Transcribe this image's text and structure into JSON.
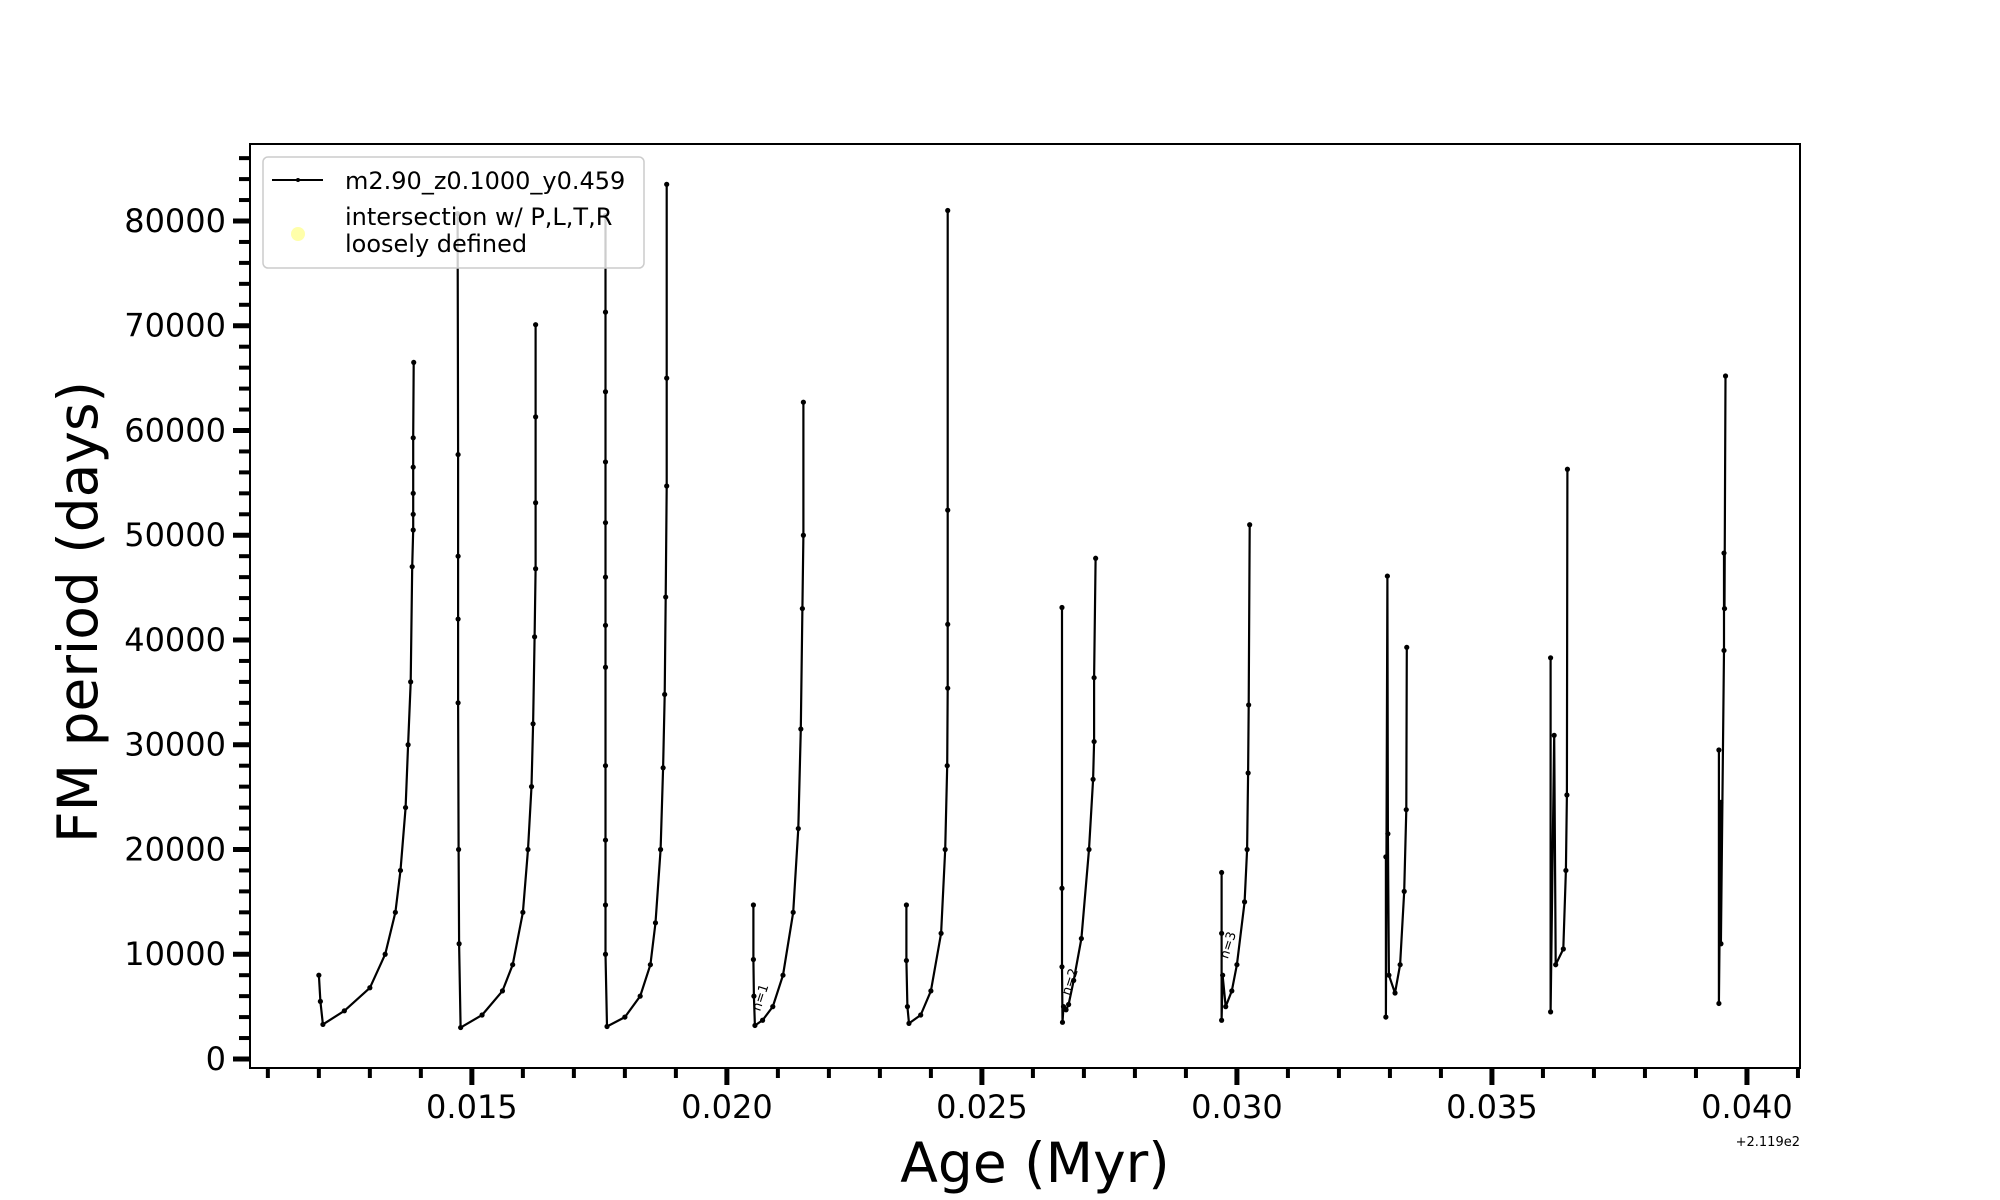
{
  "chart_data": {
    "type": "line",
    "title": "",
    "xlabel": "Age (Myr)",
    "ylabel": "FM period (days)",
    "x_offset_text": "+2.119e2",
    "xlim": [
      0.01065,
      0.04104
    ],
    "ylim": [
      -860,
      87350
    ],
    "x_ticks": [
      "0.015",
      "0.020",
      "0.025",
      "0.030",
      "0.035",
      "0.040"
    ],
    "x_tick_values": [
      0.015,
      0.02,
      0.025,
      0.03,
      0.035,
      0.04
    ],
    "y_ticks": [
      "0",
      "10000",
      "20000",
      "30000",
      "40000",
      "50000",
      "60000",
      "70000",
      "80000"
    ],
    "y_tick_values": [
      0,
      10000,
      20000,
      30000,
      40000,
      50000,
      60000,
      70000,
      80000
    ],
    "grid": false,
    "legend_placement": "upper-left",
    "legend": [
      {
        "label": "m2.90_z0.1000_y0.459",
        "marker": "line-with-dots",
        "color": "#000000"
      },
      {
        "label": "intersection w/ P,L,T,R\nloosely defined",
        "label_lines": [
          "intersection w/ P,L,T,R",
          "loosely defined"
        ],
        "marker": "circle",
        "color": "#ffffaa"
      }
    ],
    "annotations": [
      {
        "text": "n=1",
        "x": 0.02065,
        "y": 4500
      },
      {
        "text": "n=2",
        "x": 0.02672,
        "y": 6000
      },
      {
        "text": "n=3",
        "x": 0.02982,
        "y": 9500
      }
    ],
    "series": [
      {
        "name": "m2.90_z0.1000_y0.459",
        "color": "#000000",
        "segments": [
          [
            [
              0.012,
              8000
            ],
            [
              0.01203,
              5500
            ],
            [
              0.01208,
              3300
            ],
            [
              0.0125,
              4600
            ],
            [
              0.013,
              6800
            ],
            [
              0.0133,
              10000
            ],
            [
              0.0135,
              14000
            ],
            [
              0.0136,
              18000
            ],
            [
              0.0137,
              24000
            ],
            [
              0.01375,
              30000
            ],
            [
              0.0138,
              36000
            ],
            [
              0.01383,
              47000
            ],
            [
              0.01385,
              50500
            ],
            [
              0.01385,
              52000
            ],
            [
              0.01385,
              54000
            ],
            [
              0.01385,
              56500
            ],
            [
              0.01385,
              59300
            ],
            [
              0.01386,
              66500
            ]
          ],
          [
            [
              0.01472,
              80700
            ],
            [
              0.01473,
              57700
            ],
            [
              0.01473,
              48000
            ],
            [
              0.01473,
              42000
            ],
            [
              0.01473,
              34000
            ],
            [
              0.01474,
              20000
            ],
            [
              0.01475,
              11000
            ],
            [
              0.01478,
              3000
            ],
            [
              0.0152,
              4200
            ],
            [
              0.0156,
              6500
            ],
            [
              0.0158,
              9000
            ],
            [
              0.016,
              14000
            ],
            [
              0.0161,
              20000
            ],
            [
              0.01617,
              26000
            ],
            [
              0.0162,
              32000
            ],
            [
              0.01623,
              40300
            ],
            [
              0.01625,
              46800
            ],
            [
              0.01625,
              53100
            ],
            [
              0.01625,
              61300
            ],
            [
              0.01625,
              70100
            ]
          ],
          [
            [
              0.01762,
              80500
            ],
            [
              0.01762,
              71300
            ],
            [
              0.01762,
              63700
            ],
            [
              0.01762,
              57000
            ],
            [
              0.01762,
              51200
            ],
            [
              0.01762,
              46000
            ],
            [
              0.01762,
              41400
            ],
            [
              0.01762,
              37400
            ],
            [
              0.01762,
              28000
            ],
            [
              0.01762,
              20900
            ],
            [
              0.01762,
              14700
            ],
            [
              0.01762,
              10000
            ],
            [
              0.01765,
              3100
            ],
            [
              0.018,
              4000
            ],
            [
              0.0183,
              6000
            ],
            [
              0.0185,
              9000
            ],
            [
              0.0186,
              13000
            ],
            [
              0.0187,
              20000
            ],
            [
              0.01875,
              27800
            ],
            [
              0.01878,
              34800
            ],
            [
              0.0188,
              44100
            ],
            [
              0.01882,
              54700
            ],
            [
              0.01882,
              65000
            ],
            [
              0.01882,
              83500
            ]
          ],
          [
            [
              0.02052,
              14700
            ],
            [
              0.02052,
              9500
            ],
            [
              0.02053,
              6000
            ],
            [
              0.02055,
              3200
            ],
            [
              0.0207,
              3700
            ],
            [
              0.0209,
              5000
            ],
            [
              0.0211,
              8000
            ],
            [
              0.0213,
              14000
            ],
            [
              0.0214,
              22000
            ],
            [
              0.02145,
              31500
            ],
            [
              0.02148,
              43000
            ],
            [
              0.0215,
              50000
            ],
            [
              0.0215,
              62700
            ]
          ],
          [
            [
              0.02352,
              14700
            ],
            [
              0.02352,
              9400
            ],
            [
              0.02354,
              5000
            ],
            [
              0.02357,
              3400
            ],
            [
              0.0238,
              4200
            ],
            [
              0.024,
              6500
            ],
            [
              0.0242,
              12000
            ],
            [
              0.02428,
              20000
            ],
            [
              0.02432,
              28000
            ],
            [
              0.02433,
              35400
            ],
            [
              0.02433,
              41500
            ],
            [
              0.02433,
              52400
            ],
            [
              0.02433,
              81000
            ]
          ],
          [
            [
              0.02657,
              43100
            ],
            [
              0.02657,
              16300
            ],
            [
              0.02657,
              8800
            ],
            [
              0.02658,
              3500
            ],
            [
              0.0266,
              5000
            ],
            [
              0.02665,
              4700
            ],
            [
              0.0267,
              5200
            ],
            [
              0.0268,
              7500
            ],
            [
              0.02695,
              11500
            ],
            [
              0.0271,
              20000
            ],
            [
              0.02718,
              26700
            ],
            [
              0.0272,
              30300
            ],
            [
              0.0272,
              36400
            ],
            [
              0.02723,
              47800
            ]
          ],
          [
            [
              0.0297,
              17800
            ],
            [
              0.0297,
              12000
            ],
            [
              0.0297,
              3700
            ],
            [
              0.02972,
              8000
            ],
            [
              0.02978,
              5000
            ],
            [
              0.0299,
              6500
            ],
            [
              0.03,
              9000
            ],
            [
              0.03015,
              15000
            ],
            [
              0.0302,
              20000
            ],
            [
              0.03022,
              27300
            ],
            [
              0.03023,
              33800
            ],
            [
              0.03025,
              51000
            ]
          ],
          [
            [
              0.03292,
              19300
            ],
            [
              0.03292,
              4000
            ],
            [
              0.03295,
              46100
            ],
            [
              0.03296,
              21500
            ],
            [
              0.03298,
              8000
            ],
            [
              0.0331,
              6300
            ],
            [
              0.0332,
              9000
            ],
            [
              0.03328,
              16000
            ],
            [
              0.03332,
              23800
            ],
            [
              0.03333,
              39300
            ]
          ],
          [
            [
              0.03615,
              38300
            ],
            [
              0.03615,
              4500
            ],
            [
              0.03622,
              30900
            ],
            [
              0.03625,
              9000
            ],
            [
              0.0364,
              10500
            ],
            [
              0.03645,
              18000
            ],
            [
              0.03647,
              25200
            ],
            [
              0.03648,
              56300
            ]
          ],
          [
            [
              0.03945,
              29500
            ],
            [
              0.03945,
              5300
            ],
            [
              0.03949,
              24500
            ],
            [
              0.03949,
              11000
            ],
            [
              0.03955,
              39000
            ],
            [
              0.03955,
              48300
            ],
            [
              0.03956,
              43000
            ],
            [
              0.03958,
              65200
            ]
          ]
        ]
      }
    ]
  }
}
